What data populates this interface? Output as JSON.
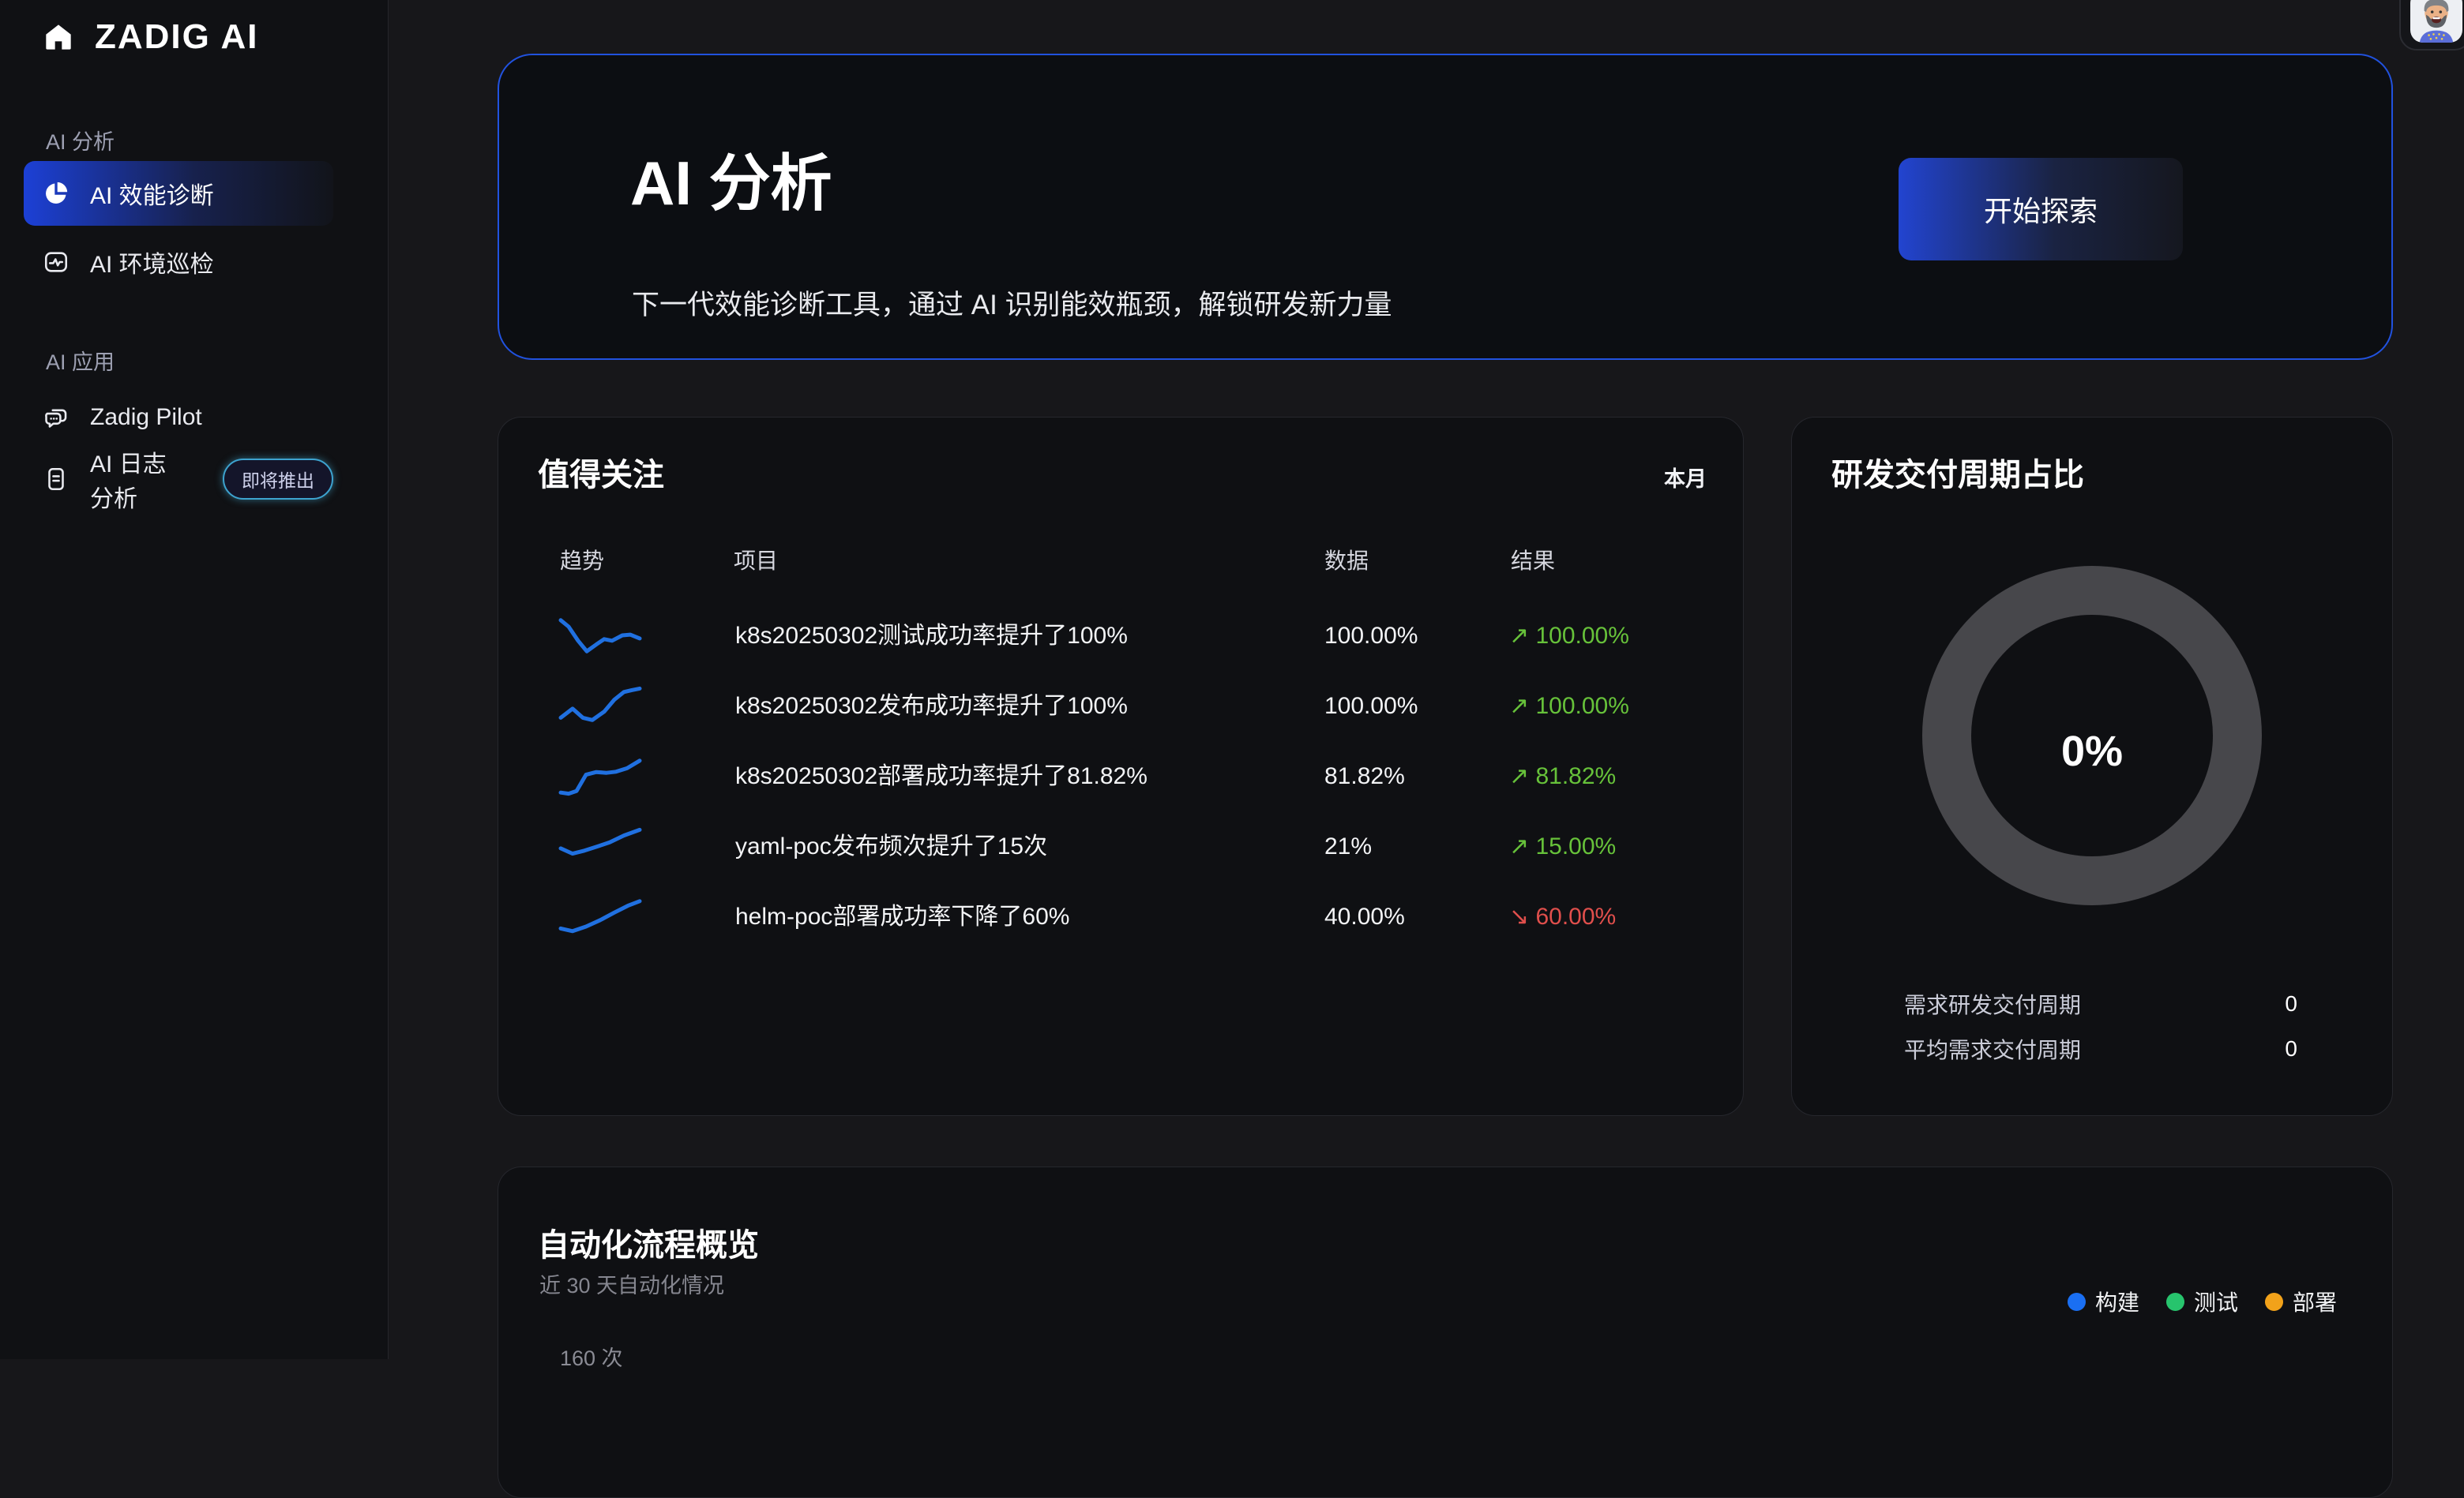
{
  "app": {
    "logo_text": "ZADIG AI"
  },
  "sidebar": {
    "sections": [
      {
        "label": "AI 分析",
        "items": [
          {
            "label": "AI 效能诊断",
            "icon": "pie-chart-icon",
            "active": true
          },
          {
            "label": "AI 环境巡检",
            "icon": "env-monitor-icon",
            "active": false
          }
        ]
      },
      {
        "label": "AI 应用",
        "items": [
          {
            "label": "Zadig Pilot",
            "icon": "chat-bubbles-icon",
            "active": false
          },
          {
            "label": "AI 日志分析",
            "icon": "log-file-icon",
            "active": false,
            "badge": "即将推出"
          }
        ]
      }
    ]
  },
  "header": {
    "avatar_icon": "user-avatar-icon"
  },
  "hero": {
    "title": "AI 分析",
    "subtitle": "下一代效能诊断工具，通过 AI 识别能效瓶颈，解锁研发新力量",
    "cta_label": "开始探索",
    "border_color": "#2152df"
  },
  "watchlist": {
    "title": "值得关注",
    "period": "本月",
    "columns": {
      "trend": "趋势",
      "project": "项目",
      "data": "数据",
      "result": "结果"
    },
    "colors": {
      "up": "#67c23a",
      "down": "#e04f4c",
      "spark": "#2070e0"
    },
    "rows": [
      {
        "project": "k8s20250302测试成功率提升了100%",
        "data": "100.00%",
        "arrow": "↗",
        "result": "100.00%",
        "direction": "up",
        "trend": [
          [
            0,
            92
          ],
          [
            10,
            75
          ],
          [
            22,
            38
          ],
          [
            33,
            10
          ],
          [
            45,
            28
          ],
          [
            55,
            42
          ],
          [
            65,
            38
          ],
          [
            78,
            52
          ],
          [
            88,
            54
          ],
          [
            100,
            44
          ]
        ]
      },
      {
        "project": "k8s20250302发布成功率提升了100%",
        "data": "100.00%",
        "arrow": "↗",
        "result": "100.00%",
        "direction": "up",
        "trend": [
          [
            0,
            20
          ],
          [
            15,
            44
          ],
          [
            28,
            20
          ],
          [
            40,
            14
          ],
          [
            55,
            36
          ],
          [
            68,
            68
          ],
          [
            80,
            88
          ],
          [
            90,
            93
          ],
          [
            100,
            97
          ]
        ]
      },
      {
        "project": "k8s20250302部署成功率提升了81.82%",
        "data": "81.82%",
        "arrow": "↗",
        "result": "81.82%",
        "direction": "up",
        "trend": [
          [
            0,
            8
          ],
          [
            10,
            5
          ],
          [
            20,
            12
          ],
          [
            32,
            55
          ],
          [
            45,
            62
          ],
          [
            58,
            60
          ],
          [
            70,
            63
          ],
          [
            84,
            72
          ],
          [
            100,
            92
          ]
        ]
      },
      {
        "project": "yaml-poc发布频次提升了15次",
        "data": "21%",
        "arrow": "↗",
        "result": "15.00%",
        "direction": "up",
        "trend": [
          [
            0,
            46
          ],
          [
            15,
            32
          ],
          [
            30,
            40
          ],
          [
            48,
            52
          ],
          [
            62,
            62
          ],
          [
            80,
            80
          ],
          [
            100,
            95
          ]
        ]
      },
      {
        "project": "helm-poc部署成功率下降了60%",
        "data": "40.00%",
        "arrow": "↘",
        "result": "60.00%",
        "direction": "down",
        "trend": [
          [
            0,
            20
          ],
          [
            15,
            13
          ],
          [
            32,
            25
          ],
          [
            50,
            42
          ],
          [
            68,
            62
          ],
          [
            85,
            80
          ],
          [
            100,
            92
          ]
        ]
      }
    ]
  },
  "delivery": {
    "title": "研发交付周期占比",
    "center_value": "0%",
    "ring_color": "#47474b",
    "metrics": [
      {
        "label": "需求研发交付周期",
        "value": "0"
      },
      {
        "label": "平均需求交付周期",
        "value": "0"
      }
    ]
  },
  "automation": {
    "title": "自动化流程概览",
    "subtitle": "近 30 天自动化情况",
    "y_axis_top_label": "160 次",
    "legend": [
      {
        "label": "构建",
        "color": "#1a6ff2"
      },
      {
        "label": "测试",
        "color": "#27c46d"
      },
      {
        "label": "部署",
        "color": "#f2a21a"
      }
    ]
  },
  "chart_data": [
    {
      "type": "line",
      "title": "值得关注 趋势 sparklines",
      "x_range": [
        0,
        100
      ],
      "y_range": [
        0,
        100
      ],
      "series": [
        {
          "name": "k8s20250302测试成功率",
          "points": [
            [
              0,
              92
            ],
            [
              10,
              75
            ],
            [
              22,
              38
            ],
            [
              33,
              10
            ],
            [
              45,
              28
            ],
            [
              55,
              42
            ],
            [
              65,
              38
            ],
            [
              78,
              52
            ],
            [
              88,
              54
            ],
            [
              100,
              44
            ]
          ]
        },
        {
          "name": "k8s20250302发布成功率",
          "points": [
            [
              0,
              20
            ],
            [
              15,
              44
            ],
            [
              28,
              20
            ],
            [
              40,
              14
            ],
            [
              55,
              36
            ],
            [
              68,
              68
            ],
            [
              80,
              88
            ],
            [
              90,
              93
            ],
            [
              100,
              97
            ]
          ]
        },
        {
          "name": "k8s20250302部署成功率",
          "points": [
            [
              0,
              8
            ],
            [
              10,
              5
            ],
            [
              20,
              12
            ],
            [
              32,
              55
            ],
            [
              45,
              62
            ],
            [
              58,
              60
            ],
            [
              70,
              63
            ],
            [
              84,
              72
            ],
            [
              100,
              92
            ]
          ]
        },
        {
          "name": "yaml-poc发布频次",
          "points": [
            [
              0,
              46
            ],
            [
              15,
              32
            ],
            [
              30,
              40
            ],
            [
              48,
              52
            ],
            [
              62,
              62
            ],
            [
              80,
              80
            ],
            [
              100,
              95
            ]
          ]
        },
        {
          "name": "helm-poc部署成功率",
          "points": [
            [
              0,
              20
            ],
            [
              15,
              13
            ],
            [
              32,
              25
            ],
            [
              50,
              42
            ],
            [
              68,
              62
            ],
            [
              85,
              80
            ],
            [
              100,
              92
            ]
          ]
        }
      ]
    },
    {
      "type": "pie",
      "title": "研发交付周期占比",
      "center_label": "0%",
      "slices": [],
      "empty_ring_color": "#47474b",
      "values": [
        {
          "label": "需求研发交付周期",
          "value": 0
        },
        {
          "label": "平均需求交付周期",
          "value": 0
        }
      ]
    },
    {
      "type": "bar",
      "title": "自动化流程概览",
      "subtitle": "近 30 天自动化情况",
      "series_names": [
        "构建",
        "测试",
        "部署"
      ],
      "visible_y_tick": "160 次"
    }
  ]
}
